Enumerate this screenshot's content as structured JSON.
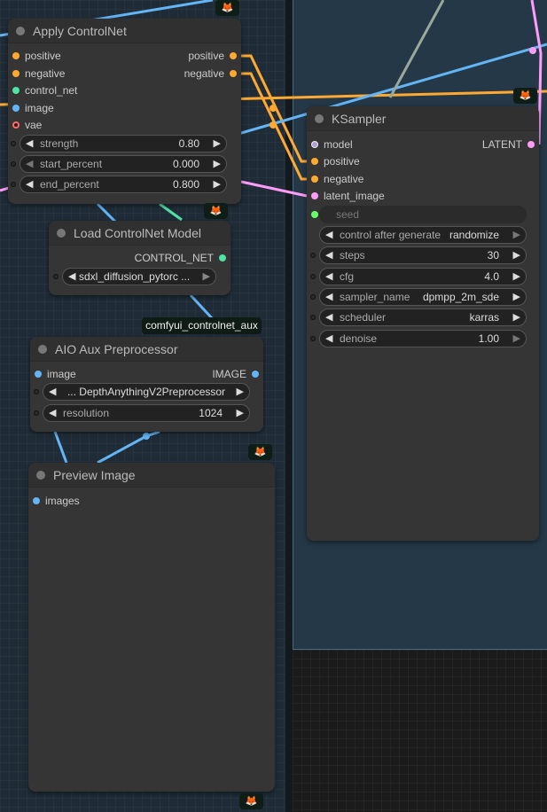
{
  "colors": {
    "positive": "#ffa931",
    "conditioning": "#ffa931",
    "control_net": "#4fe3a4",
    "image": "#64b5f6",
    "vae": "#ff6e6e",
    "model": "#b39ddb",
    "latent": "#ff9cf9",
    "int": "#66ff66"
  },
  "apply_controlnet": {
    "title": "Apply ControlNet",
    "inputs": [
      "positive",
      "negative",
      "control_net",
      "image",
      "vae"
    ],
    "outputs": [
      "positive",
      "negative"
    ],
    "widgets": [
      {
        "label": "strength",
        "value": "0.80"
      },
      {
        "label": "start_percent",
        "value": "0.000"
      },
      {
        "label": "end_percent",
        "value": "0.800"
      }
    ]
  },
  "load_controlnet": {
    "title": "Load ControlNet Model",
    "output": "CONTROL_NET",
    "widget_value": "sdxl_diffusion_pytorc ..."
  },
  "badge": "comfyui_controlnet_aux",
  "aio": {
    "title": "AIO Aux Preprocessor",
    "input": "image",
    "output": "IMAGE",
    "preprocessor": "... DepthAnythingV2Preprocessor",
    "resolution_label": "resolution",
    "resolution_value": "1024"
  },
  "preview": {
    "title": "Preview Image",
    "input": "images"
  },
  "ksampler": {
    "title": "KSampler",
    "inputs": [
      "model",
      "positive",
      "negative",
      "latent_image"
    ],
    "output": "LATENT",
    "seed_label": "seed",
    "widgets": [
      {
        "label": "control after generate",
        "value": "randomize"
      },
      {
        "label": "steps",
        "value": "30"
      },
      {
        "label": "cfg",
        "value": "4.0"
      },
      {
        "label": "sampler_name",
        "value": "dpmpp_2m_sde"
      },
      {
        "label": "scheduler",
        "value": "karras"
      },
      {
        "label": "denoise",
        "value": "1.00"
      }
    ]
  },
  "fox_icon": "fox-icon"
}
